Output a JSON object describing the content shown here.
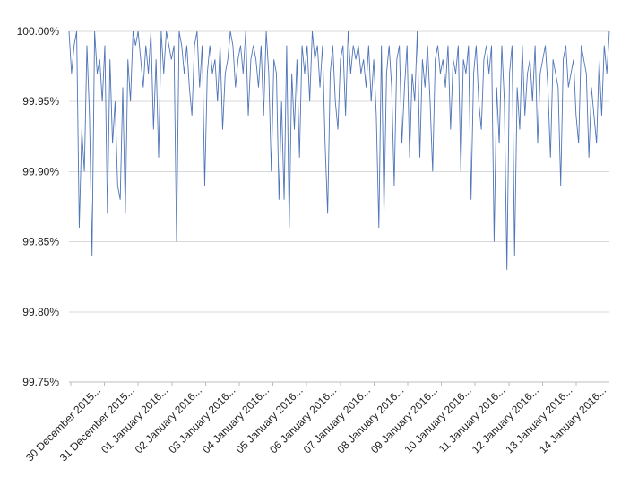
{
  "chart_data": {
    "type": "line",
    "title": "",
    "xlabel": "",
    "ylabel": "",
    "ylim": [
      99.75,
      100.0
    ],
    "yticks": [
      "99.75%",
      "99.80%",
      "99.85%",
      "99.90%",
      "99.95%",
      "100.00%"
    ],
    "xtick_labels": [
      "30 December 2015...",
      "31 December 2015...",
      "01 January 2016...",
      "02 January 2016...",
      "03 January 2016...",
      "04 January 2016...",
      "05 January 2016...",
      "06 January 2016...",
      "07 January 2016...",
      "08 January 2016...",
      "09 January 2016...",
      "10 January 2016...",
      "11 January 2016...",
      "12 January 2016...",
      "13 January 2016...",
      "14 January 2016..."
    ],
    "grid": true,
    "legend": "none",
    "series_color": "#4f74b8",
    "series": [
      {
        "values": [
          100.0,
          99.97,
          99.99,
          100.0,
          99.86,
          99.93,
          99.9,
          99.99,
          99.94,
          99.84,
          100.0,
          99.97,
          99.98,
          99.95,
          99.99,
          99.87,
          99.98,
          99.92,
          99.95,
          99.89,
          99.88,
          99.96,
          99.87,
          99.98,
          99.95,
          100.0,
          99.99,
          100.0,
          99.98,
          99.96,
          99.99,
          99.97,
          100.0,
          99.93,
          99.98,
          99.91,
          100.0,
          99.97,
          100.0,
          99.99,
          99.98,
          99.99,
          99.85,
          100.0,
          99.99,
          99.97,
          99.99,
          99.96,
          99.94,
          99.99,
          100.0,
          99.96,
          99.99,
          99.89,
          99.97,
          99.99,
          99.97,
          99.98,
          99.95,
          99.99,
          99.93,
          99.97,
          99.98,
          100.0,
          99.99,
          99.96,
          99.98,
          99.99,
          99.97,
          100.0,
          99.94,
          99.98,
          99.99,
          99.98,
          99.96,
          99.99,
          99.94,
          100.0,
          99.97,
          99.9,
          99.98,
          99.97,
          99.88,
          99.95,
          99.88,
          99.99,
          99.86,
          99.97,
          99.93,
          99.98,
          99.91,
          99.99,
          99.97,
          99.99,
          99.95,
          100.0,
          99.98,
          99.99,
          99.96,
          99.99,
          99.92,
          99.87,
          99.97,
          99.99,
          99.95,
          99.93,
          99.98,
          99.99,
          99.94,
          100.0,
          99.97,
          99.99,
          99.98,
          99.99,
          99.97,
          99.98,
          99.96,
          99.99,
          99.95,
          99.98,
          99.94,
          99.86,
          99.99,
          99.87,
          99.97,
          99.99,
          99.96,
          99.89,
          99.98,
          99.99,
          99.92,
          99.96,
          99.99,
          99.91,
          99.97,
          99.95,
          100.0,
          99.91,
          99.98,
          99.96,
          99.99,
          99.95,
          99.9,
          99.98,
          99.99,
          99.97,
          99.98,
          99.96,
          99.99,
          99.93,
          99.98,
          99.97,
          99.99,
          99.9,
          99.98,
          99.97,
          99.99,
          99.88,
          99.97,
          99.99,
          99.95,
          99.93,
          99.98,
          99.99,
          99.97,
          99.99,
          99.85,
          99.96,
          99.92,
          99.99,
          99.95,
          99.83,
          99.97,
          99.99,
          99.84,
          99.96,
          99.93,
          99.99,
          99.94,
          99.97,
          99.98,
          99.95,
          99.99,
          99.92,
          99.97,
          99.98,
          99.99,
          99.96,
          99.91,
          99.98,
          99.97,
          99.96,
          99.89,
          99.98,
          99.99,
          99.96,
          99.97,
          99.98,
          99.94,
          99.92,
          99.99,
          99.98,
          99.97,
          99.91,
          99.96,
          99.94,
          99.92,
          99.98,
          99.94,
          99.99,
          99.97,
          100.0
        ]
      }
    ]
  }
}
